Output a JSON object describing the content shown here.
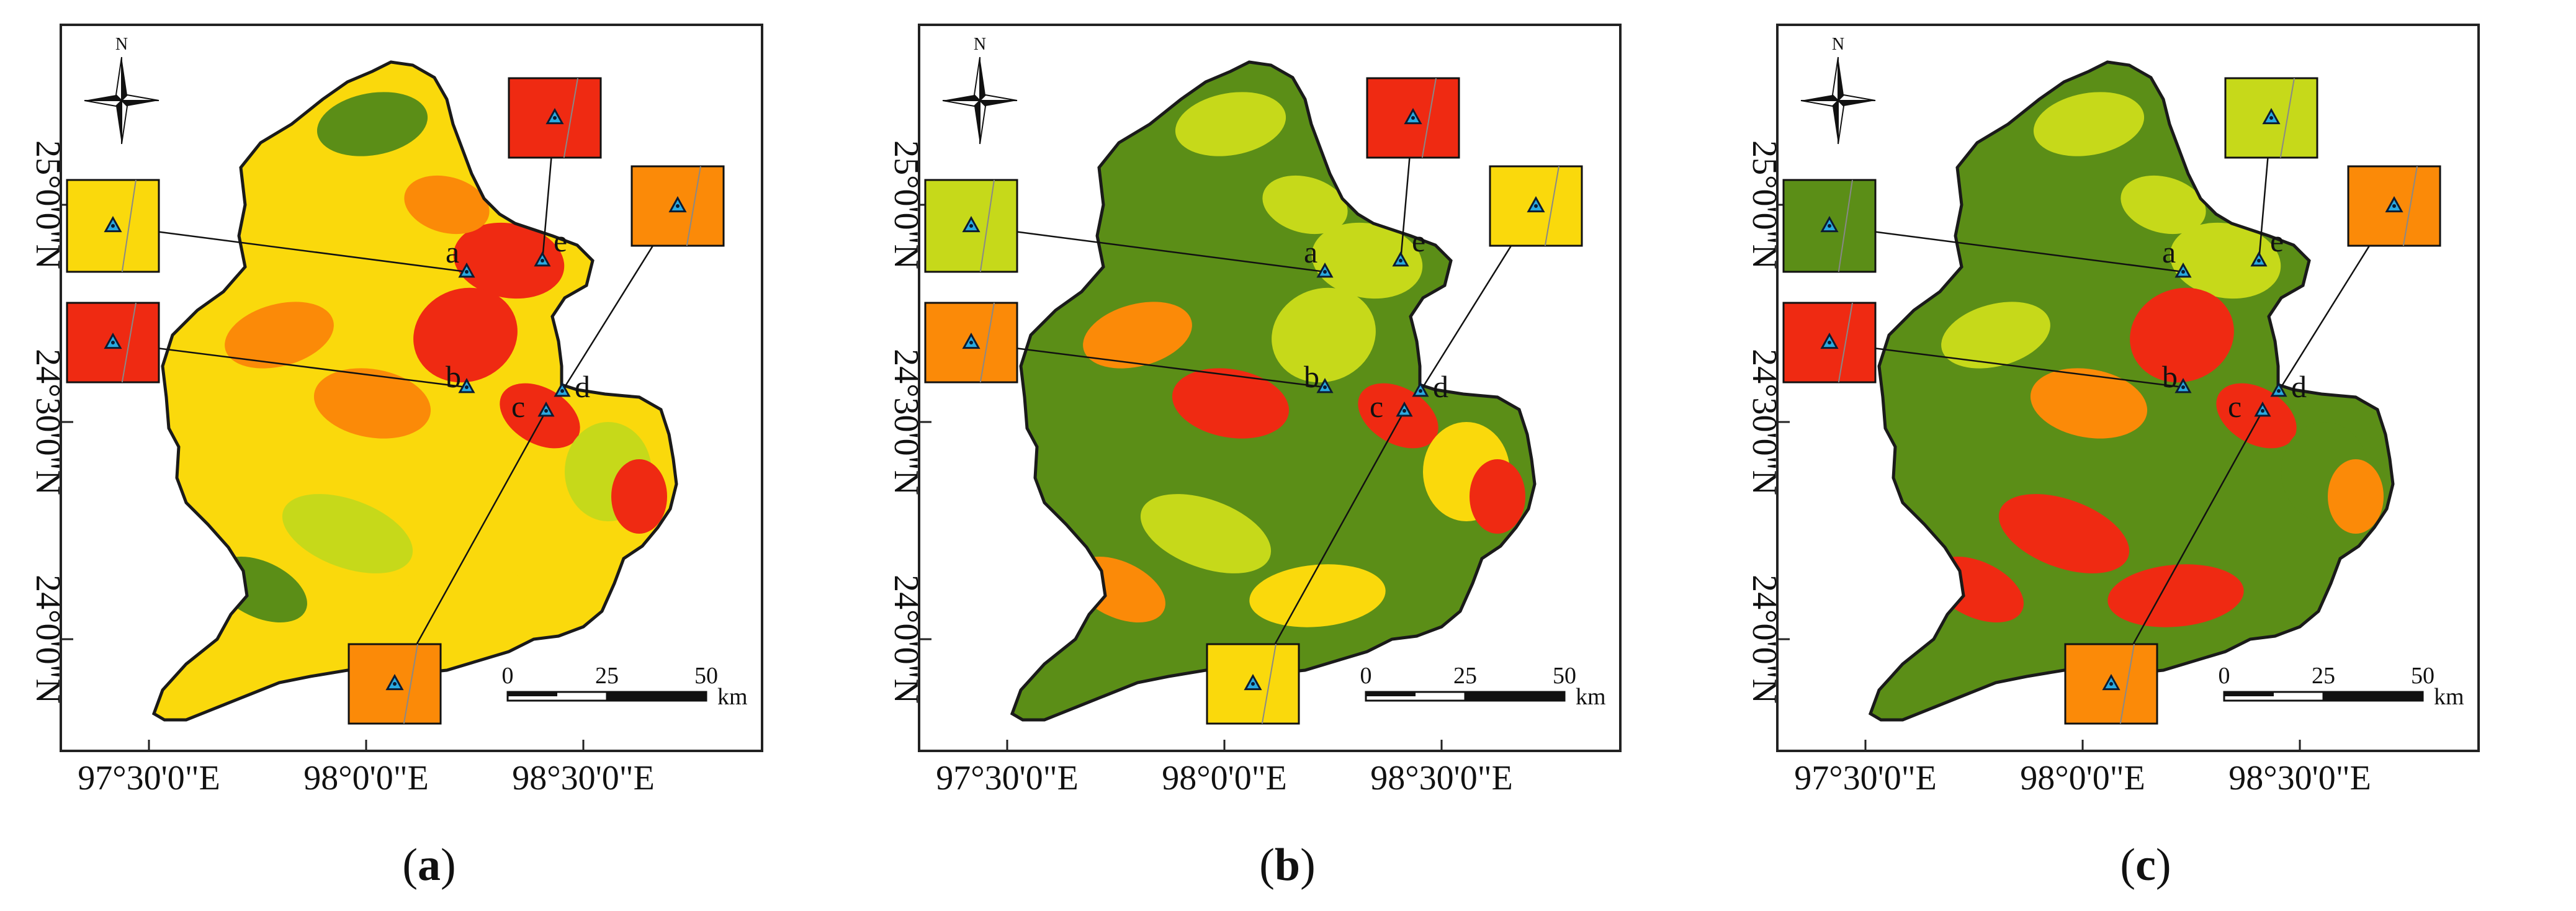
{
  "legend_colors": {
    "dark_green": "#5b8e17",
    "light_green": "#c6d91a",
    "yellow": "#fad90c",
    "orange": "#fb8a08",
    "red": "#ef2a12"
  },
  "axes": {
    "lat_labels": [
      "25°0'0\"N",
      "24°30'0\"N",
      "24°0'0\"N"
    ],
    "lon_labels": [
      "97°30'0\"E",
      "98°0'0\"E",
      "98°30'0\"E"
    ]
  },
  "compass": {
    "label": "N"
  },
  "scale_bar": {
    "labels": [
      "0",
      "25",
      "50"
    ],
    "unit": "km"
  },
  "site_labels": [
    "a",
    "b",
    "c",
    "d",
    "e"
  ],
  "panels": [
    {
      "caption_open": "(",
      "caption_letter": "a",
      "caption_close": ")",
      "base": "yellow",
      "patches": [
        "red",
        "red",
        "red",
        "orange",
        "orange",
        "light_green",
        "light_green",
        "dark_green",
        "dark_green",
        "red",
        "orange",
        "yellow"
      ],
      "insets": {
        "a": "yellow",
        "b": "red",
        "c": "orange",
        "d": "orange",
        "e": "red"
      }
    },
    {
      "caption_open": "(",
      "caption_letter": "b",
      "caption_close": ")",
      "base": "dark_green",
      "patches": [
        "light_green",
        "light_green",
        "red",
        "red",
        "orange",
        "yellow",
        "light_green",
        "light_green",
        "orange",
        "red",
        "light_green",
        "yellow"
      ],
      "insets": {
        "a": "light_green",
        "b": "orange",
        "c": "yellow",
        "d": "yellow",
        "e": "red"
      }
    },
    {
      "caption_open": "(",
      "caption_letter": "c",
      "caption_close": ")",
      "base": "dark_green",
      "patches": [
        "light_green",
        "red",
        "red",
        "orange",
        "light_green",
        "dark_green",
        "red",
        "light_green",
        "red",
        "orange",
        "light_green",
        "red"
      ],
      "insets": {
        "a": "dark_green",
        "b": "red",
        "c": "orange",
        "d": "orange",
        "e": "light_green"
      }
    }
  ]
}
